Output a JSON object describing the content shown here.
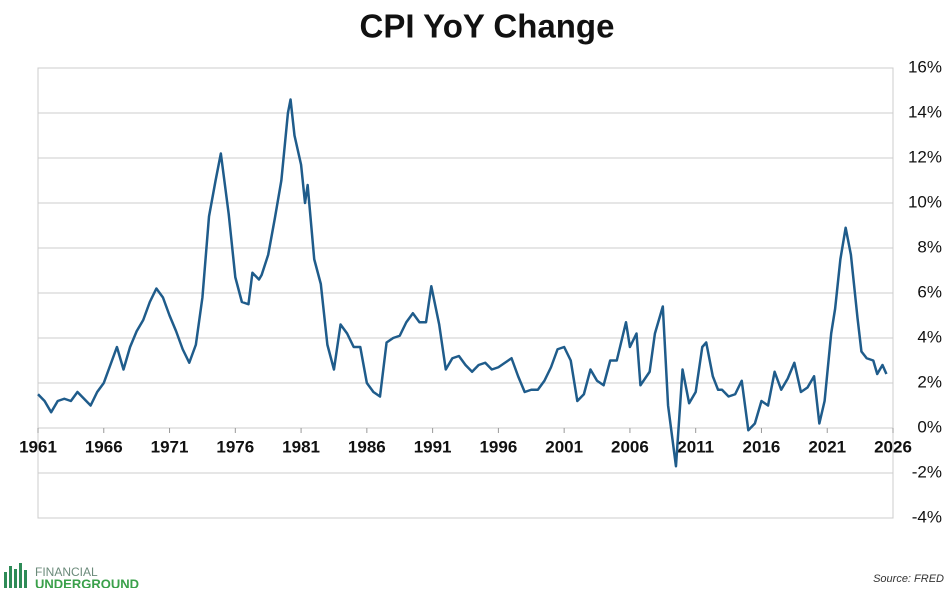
{
  "chart_data": {
    "type": "line",
    "title": "CPI YoY Change",
    "color": "#1f5c8b",
    "grid": true,
    "xlim": [
      1961,
      2026
    ],
    "xticks": [
      1961,
      1966,
      1971,
      1976,
      1981,
      1986,
      1991,
      1996,
      2001,
      2006,
      2011,
      2016,
      2021,
      2026
    ],
    "ylim": [
      -4,
      16
    ],
    "yticks": [
      {
        "value": -4,
        "label": "-4%"
      },
      {
        "value": -2,
        "label": "-2%"
      },
      {
        "value": 0,
        "label": "0%"
      },
      {
        "value": 2,
        "label": "2%"
      },
      {
        "value": 4,
        "label": "4%"
      },
      {
        "value": 6,
        "label": "6%"
      },
      {
        "value": 8,
        "label": "8%"
      },
      {
        "value": 10,
        "label": "10%"
      },
      {
        "value": 12,
        "label": "12%"
      },
      {
        "value": 14,
        "label": "14%"
      },
      {
        "value": 16,
        "label": "16%"
      }
    ],
    "x": [
      1961,
      1961.5,
      1962,
      1962.5,
      1963,
      1963.5,
      1964,
      1964.5,
      1965,
      1965.5,
      1966,
      1966.5,
      1967,
      1967.5,
      1968,
      1968.5,
      1969,
      1969.5,
      1970,
      1970.5,
      1971,
      1971.5,
      1972,
      1972.5,
      1973,
      1973.5,
      1974,
      1974.5,
      1974.9,
      1975.5,
      1976,
      1976.5,
      1977,
      1977.3,
      1977.8,
      1978,
      1978.5,
      1979,
      1979.5,
      1980,
      1980.2,
      1980.5,
      1981,
      1981.3,
      1981.5,
      1982,
      1982.5,
      1983,
      1983.5,
      1984,
      1984.5,
      1985,
      1985.5,
      1986,
      1986.5,
      1987,
      1987.5,
      1988,
      1988.5,
      1989,
      1989.5,
      1990,
      1990.5,
      1990.9,
      1991.5,
      1992,
      1992.5,
      1993,
      1993.5,
      1994,
      1994.5,
      1995,
      1995.5,
      1996,
      1996.5,
      1997,
      1997.5,
      1998,
      1998.5,
      1999,
      1999.5,
      2000,
      2000.5,
      2001,
      2001.5,
      2002,
      2002.5,
      2003,
      2003.5,
      2004,
      2004.5,
      2005,
      2005.7,
      2006,
      2006.5,
      2006.8,
      2007.5,
      2007.9,
      2008.5,
      2008.9,
      2009.5,
      2010,
      2010.5,
      2011,
      2011.5,
      2011.8,
      2012.3,
      2012.7,
      2013,
      2013.5,
      2014,
      2014.5,
      2015,
      2015.5,
      2016,
      2016.5,
      2017,
      2017.5,
      2018,
      2018.5,
      2019,
      2019.5,
      2020,
      2020.4,
      2020.8,
      2021.3,
      2021.6,
      2022,
      2022.4,
      2022.8,
      2023.3,
      2023.6,
      2024,
      2024.5,
      2024.8,
      2025.2,
      2025.5
    ],
    "values": [
      1.5,
      1.2,
      0.7,
      1.2,
      1.3,
      1.2,
      1.6,
      1.3,
      1.0,
      1.6,
      2.0,
      2.8,
      3.6,
      2.6,
      3.6,
      4.3,
      4.8,
      5.6,
      6.2,
      5.8,
      5.0,
      4.3,
      3.5,
      2.9,
      3.7,
      5.8,
      9.4,
      11.0,
      12.2,
      9.5,
      6.7,
      5.6,
      5.5,
      6.9,
      6.6,
      6.8,
      7.7,
      9.3,
      11.0,
      14.0,
      14.6,
      13.0,
      11.7,
      10.0,
      10.8,
      7.5,
      6.4,
      3.7,
      2.6,
      4.6,
      4.2,
      3.6,
      3.6,
      2.0,
      1.6,
      1.4,
      3.8,
      4.0,
      4.1,
      4.7,
      5.1,
      4.7,
      4.7,
      6.3,
      4.6,
      2.6,
      3.1,
      3.2,
      2.8,
      2.5,
      2.8,
      2.9,
      2.6,
      2.7,
      2.9,
      3.1,
      2.3,
      1.6,
      1.7,
      1.7,
      2.1,
      2.7,
      3.5,
      3.6,
      3.0,
      1.2,
      1.5,
      2.6,
      2.1,
      1.9,
      3.0,
      3.0,
      4.7,
      3.6,
      4.2,
      1.9,
      2.5,
      4.2,
      5.4,
      1.0,
      -1.7,
      2.6,
      1.1,
      1.6,
      3.6,
      3.8,
      2.3,
      1.7,
      1.7,
      1.4,
      1.5,
      2.1,
      -0.1,
      0.2,
      1.2,
      1.0,
      2.5,
      1.7,
      2.2,
      2.9,
      1.6,
      1.8,
      2.3,
      0.2,
      1.2,
      4.2,
      5.3,
      7.5,
      8.9,
      7.7,
      4.9,
      3.4,
      3.1,
      3.0,
      2.4,
      2.8,
      2.4
    ],
    "logo": [
      "FINANCIAL",
      "UNDERGROUND"
    ],
    "source": "Source: FRED"
  }
}
